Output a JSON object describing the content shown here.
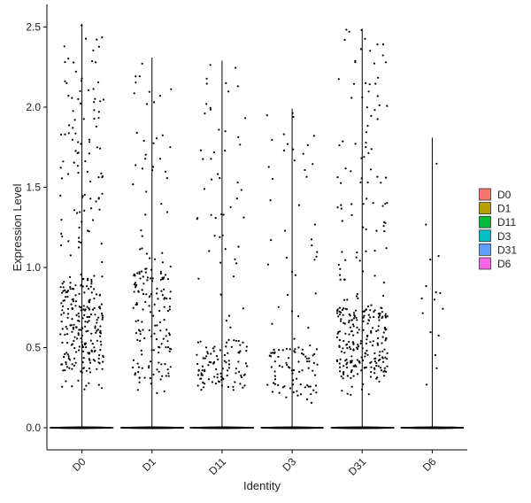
{
  "chart_data": {
    "type": "violin-jitter",
    "title": "",
    "xlabel": "Identity",
    "ylabel": "Expression Level",
    "ylim": [
      0,
      2.5
    ],
    "yticks": [
      "0.0",
      "0.5",
      "1.0",
      "1.5",
      "2.0",
      "2.5"
    ],
    "categories": [
      "D0",
      "D1",
      "D11",
      "D3",
      "D31",
      "D6"
    ],
    "series": [
      {
        "name": "D0",
        "color": "#F8766D",
        "max": 2.52
      },
      {
        "name": "D1",
        "color": "#B79F00",
        "max": 2.31
      },
      {
        "name": "D11",
        "color": "#00BA38",
        "max": 2.29
      },
      {
        "name": "D3",
        "color": "#00BFC4",
        "max": 1.99
      },
      {
        "name": "D31",
        "color": "#619CFF",
        "max": 2.49
      },
      {
        "name": "D6",
        "color": "#F564E3",
        "max": 1.81
      }
    ],
    "legend": {
      "placement": "right",
      "entries": [
        "D0",
        "D1",
        "D11",
        "D3",
        "D31",
        "D6"
      ]
    },
    "grid": false
  }
}
